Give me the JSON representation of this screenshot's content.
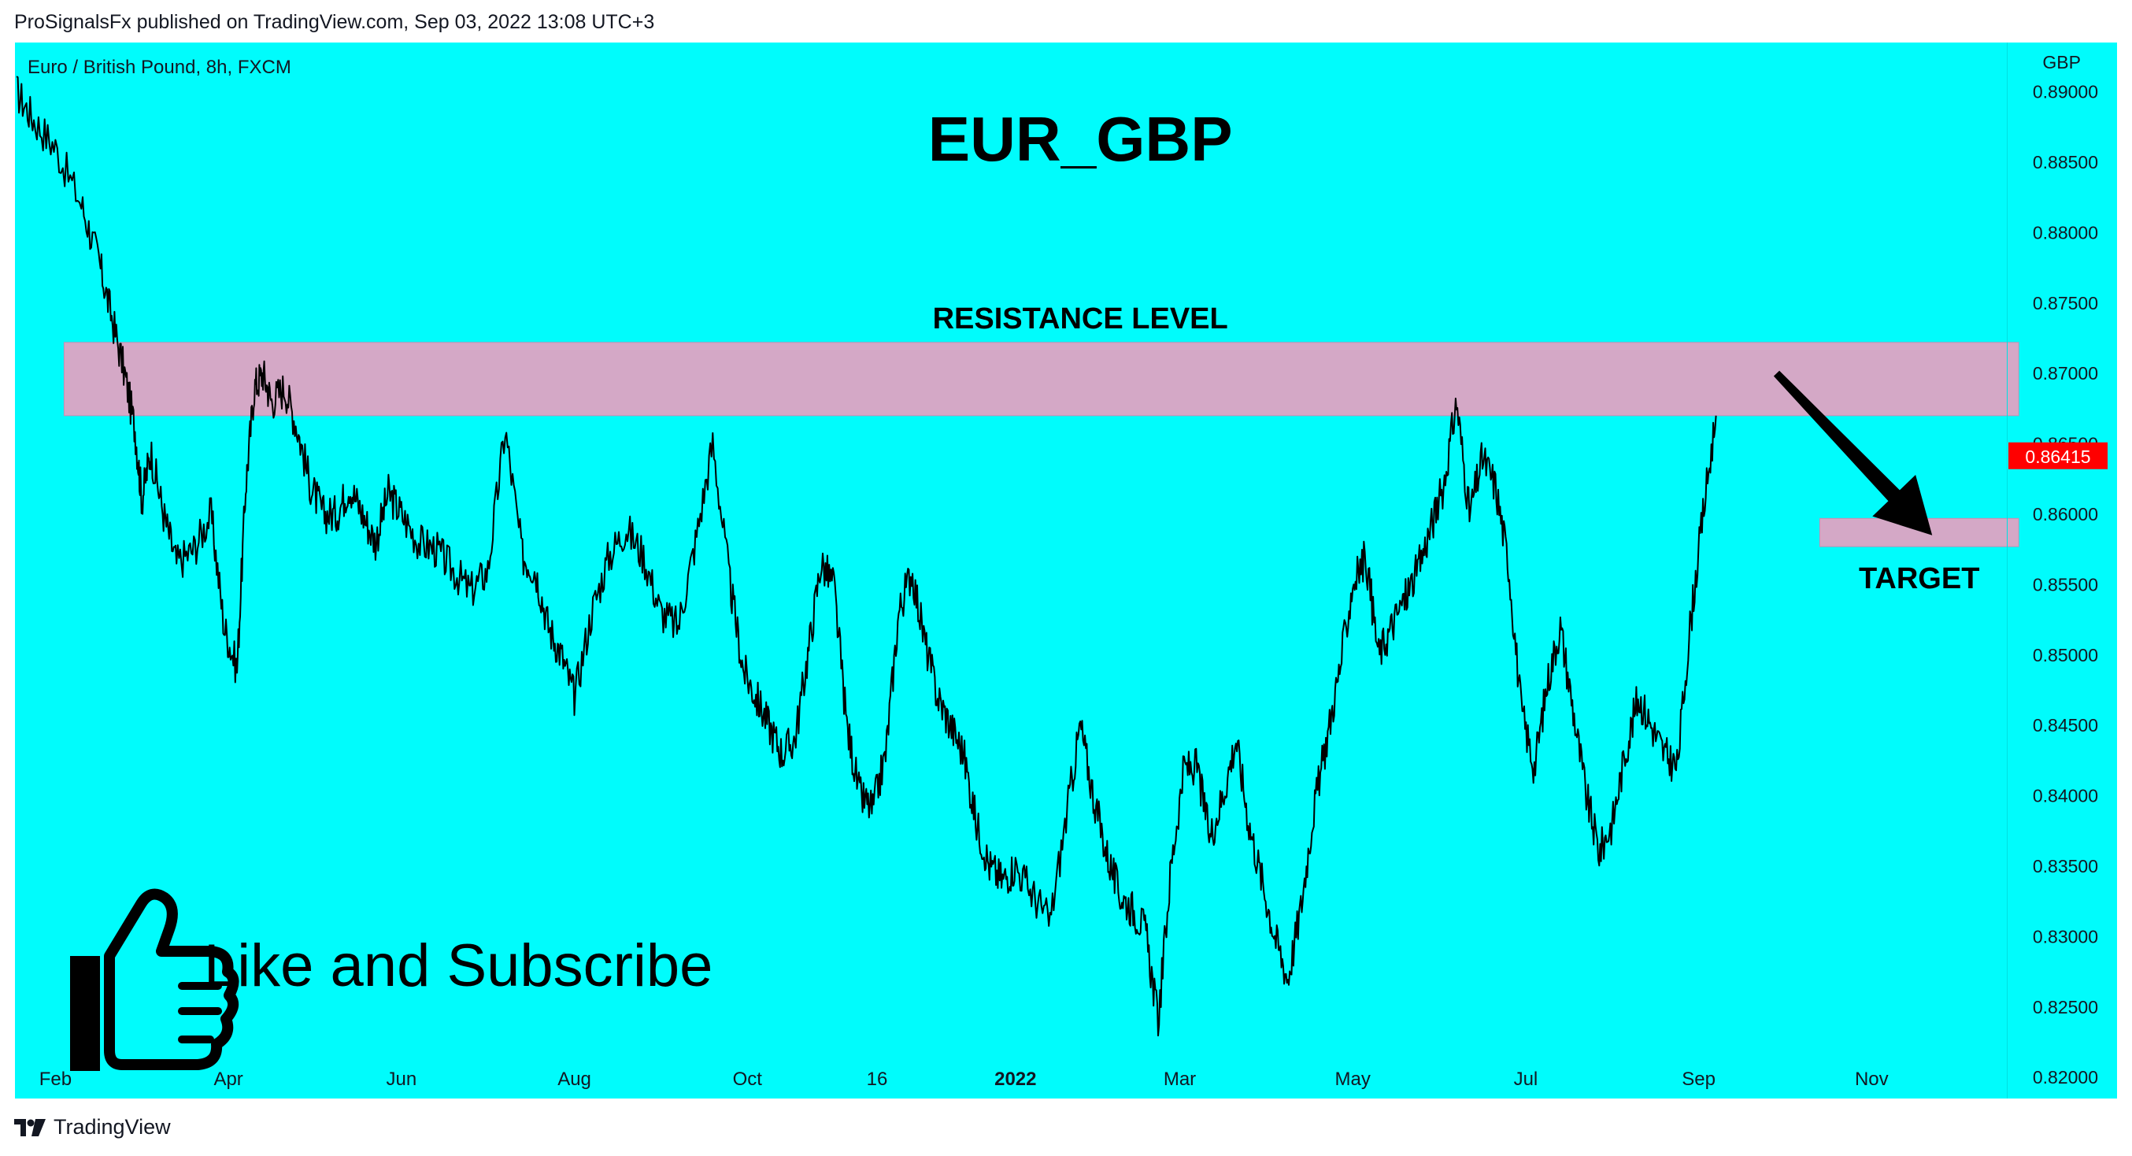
{
  "header": {
    "publisher_line": "ProSignalsFx published on TradingView.com, Sep 03, 2022 13:08 UTC+3"
  },
  "footer": {
    "brand": "TradingView",
    "logo_icon": "tradingview-logo-icon"
  },
  "chart_data": {
    "type": "line",
    "symbol": "Euro / British Pound, 8h, FXCM",
    "currency": "GBP",
    "title": "EUR_GBP",
    "background": "#00fcfc",
    "price_color": "#000000",
    "grid": false,
    "ylim": [
      0.8185,
      0.8935
    ],
    "y_ticks": [
      "0.89000",
      "0.88500",
      "0.88000",
      "0.87500",
      "0.87000",
      "0.86500",
      "0.86000",
      "0.85500",
      "0.85000",
      "0.84500",
      "0.84000",
      "0.83500",
      "0.83000",
      "0.82500",
      "0.82000"
    ],
    "x_ticks": [
      {
        "label": "Feb",
        "t": 0.5,
        "bold": false
      },
      {
        "label": "Apr",
        "t": 2.5,
        "bold": false
      },
      {
        "label": "Jun",
        "t": 4.5,
        "bold": false
      },
      {
        "label": "Aug",
        "t": 6.5,
        "bold": false
      },
      {
        "label": "Oct",
        "t": 8.5,
        "bold": false
      },
      {
        "label": "16",
        "t": 10.0,
        "bold": false
      },
      {
        "label": "2022",
        "t": 11.6,
        "bold": true
      },
      {
        "label": "Mar",
        "t": 13.5,
        "bold": false
      },
      {
        "label": "May",
        "t": 15.5,
        "bold": false
      },
      {
        "label": "Jul",
        "t": 17.5,
        "bold": false
      },
      {
        "label": "Sep",
        "t": 19.5,
        "bold": false
      },
      {
        "label": "Nov",
        "t": 21.5,
        "bold": false
      }
    ],
    "t_range": [
      0.05,
      23.7
    ],
    "price_series": {
      "name": "EURGBP 8h",
      "x": [
        0.05,
        0.25,
        0.5,
        0.8,
        1.0,
        1.15,
        1.3,
        1.42,
        1.5,
        1.6,
        1.75,
        1.9,
        2.1,
        2.3,
        2.45,
        2.6,
        2.7,
        2.8,
        2.9,
        3.0,
        3.15,
        3.3,
        3.45,
        3.6,
        3.75,
        3.9,
        4.05,
        4.2,
        4.35,
        4.5,
        4.7,
        4.9,
        5.1,
        5.3,
        5.5,
        5.7,
        5.9,
        6.05,
        6.2,
        6.35,
        6.5,
        6.7,
        6.9,
        7.1,
        7.3,
        7.5,
        7.7,
        7.9,
        8.1,
        8.3,
        8.45,
        8.6,
        8.75,
        8.9,
        9.05,
        9.2,
        9.35,
        9.5,
        9.65,
        9.8,
        9.95,
        10.1,
        10.25,
        10.4,
        10.55,
        10.7,
        10.85,
        11.0,
        11.15,
        11.3,
        11.45,
        11.6,
        11.8,
        12.0,
        12.2,
        12.35,
        12.5,
        12.65,
        12.8,
        12.95,
        13.1,
        13.25,
        13.4,
        13.55,
        13.7,
        13.85,
        14.0,
        14.15,
        14.3,
        14.45,
        14.6,
        14.75,
        14.9,
        15.05,
        15.2,
        15.35,
        15.5,
        15.65,
        15.8,
        15.95,
        16.1,
        16.25,
        16.4,
        16.55,
        16.7,
        16.85,
        17.0,
        17.15,
        17.3,
        17.45,
        17.6,
        17.75,
        17.9,
        18.05,
        18.2,
        18.35,
        18.5,
        18.65,
        18.8,
        18.95,
        19.1,
        19.25,
        19.4,
        19.55,
        19.7
      ],
      "values": [
        0.89,
        0.888,
        0.886,
        0.882,
        0.878,
        0.874,
        0.87,
        0.866,
        0.861,
        0.8645,
        0.86,
        0.8565,
        0.8575,
        0.86,
        0.852,
        0.849,
        0.862,
        0.869,
        0.87,
        0.868,
        0.869,
        0.866,
        0.862,
        0.86,
        0.86,
        0.862,
        0.86,
        0.858,
        0.8615,
        0.86,
        0.858,
        0.8575,
        0.856,
        0.8545,
        0.856,
        0.866,
        0.857,
        0.856,
        0.852,
        0.85,
        0.847,
        0.853,
        0.857,
        0.859,
        0.857,
        0.853,
        0.852,
        0.858,
        0.865,
        0.855,
        0.849,
        0.847,
        0.845,
        0.843,
        0.844,
        0.85,
        0.8565,
        0.855,
        0.845,
        0.84,
        0.839,
        0.843,
        0.853,
        0.856,
        0.851,
        0.847,
        0.845,
        0.843,
        0.838,
        0.835,
        0.834,
        0.835,
        0.833,
        0.831,
        0.839,
        0.845,
        0.84,
        0.836,
        0.833,
        0.832,
        0.8305,
        0.824,
        0.835,
        0.842,
        0.842,
        0.837,
        0.84,
        0.844,
        0.838,
        0.834,
        0.83,
        0.827,
        0.832,
        0.839,
        0.844,
        0.849,
        0.855,
        0.857,
        0.85,
        0.852,
        0.854,
        0.856,
        0.859,
        0.862,
        0.868,
        0.86,
        0.864,
        0.862,
        0.8565,
        0.846,
        0.842,
        0.848,
        0.852,
        0.846,
        0.84,
        0.836,
        0.838,
        0.843,
        0.847,
        0.845,
        0.843,
        0.842,
        0.852,
        0.86,
        0.867
      ]
    },
    "resistance_zone": {
      "from": 0.867,
      "to": 0.8722,
      "t_start": 0.6,
      "t_end": 23.2,
      "color": "#d4a8c6",
      "label": "RESISTANCE LEVEL"
    },
    "target_zone": {
      "from": 0.8577,
      "to": 0.8597,
      "t_start": 20.9,
      "t_end": 23.2,
      "color": "#d4a8c6",
      "label": "TARGET"
    },
    "arrow": {
      "from_t": 20.4,
      "from_price": 0.87,
      "to_t": 22.2,
      "to_price": 0.8585
    },
    "last_price": {
      "label": "0.86415",
      "value": 0.86415,
      "color": "#ff0000"
    },
    "overlay_text": {
      "cta": "Like and Subscribe",
      "cta_icon": "thumbs-up-icon"
    }
  }
}
